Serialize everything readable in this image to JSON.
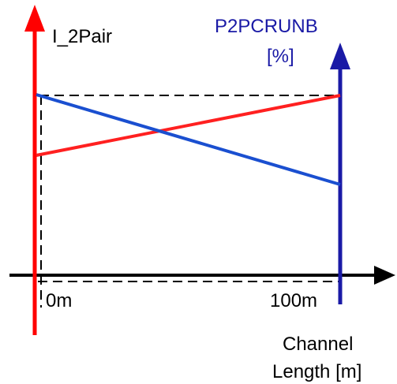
{
  "labels": {
    "left_axis": "I_2Pair",
    "right_axis_line1": "P2PCRUNB",
    "right_axis_line2": "[%]",
    "x_start": "0m",
    "x_end": "100m",
    "x_axis_line1": "Channel",
    "x_axis_line2": "Length [m]"
  },
  "colors": {
    "left_axis": "#ff0000",
    "right_axis": "#1a1aa6",
    "current_line": "#ff2020",
    "percent_line": "#1a4fd0",
    "x_axis": "#000000",
    "dashed": "#000000"
  }
}
